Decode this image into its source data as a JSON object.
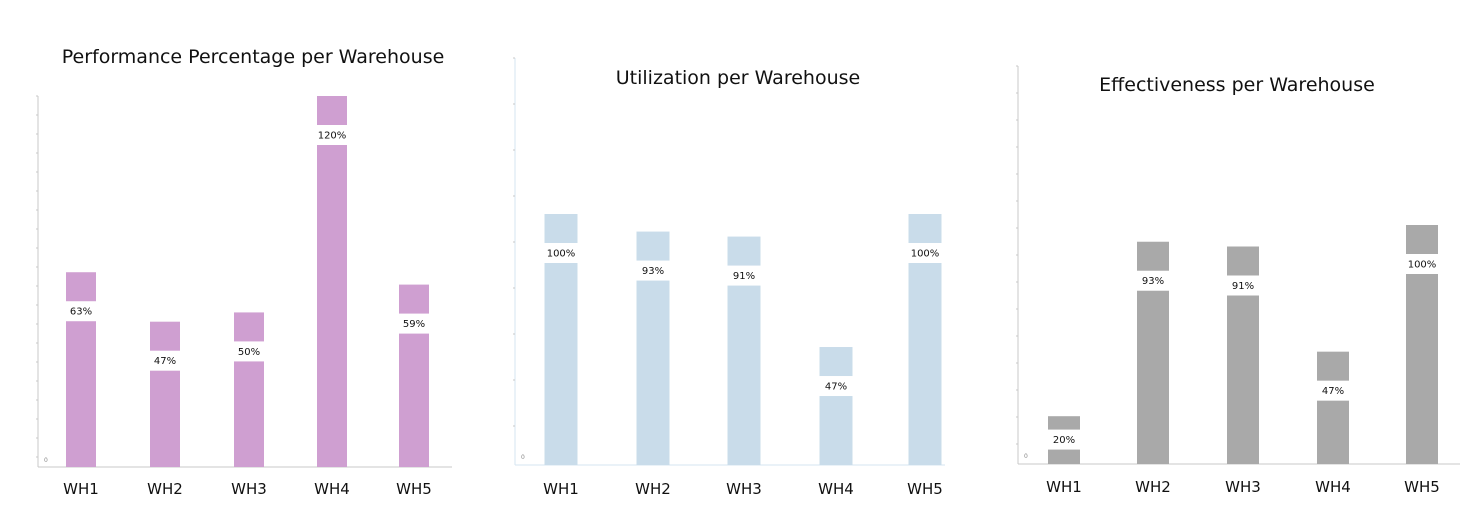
{
  "chart_data": [
    {
      "type": "bar",
      "title": "Performance Percentage per Warehouse",
      "categories": [
        "WH1",
        "WH2",
        "WH3",
        "WH4",
        "WH5"
      ],
      "values": [
        63,
        47,
        50,
        120,
        59
      ],
      "value_labels": [
        "63%",
        "47%",
        "50%",
        "120%",
        "59%"
      ],
      "y_min_label": "0",
      "color": "#cf9fd1"
    },
    {
      "type": "bar",
      "title": "Utilization per Warehouse",
      "categories": [
        "WH1",
        "WH2",
        "WH3",
        "WH4",
        "WH5"
      ],
      "values": [
        100,
        93,
        91,
        47,
        100
      ],
      "value_labels": [
        "100%",
        "93%",
        "91%",
        "47%",
        "100%"
      ],
      "y_min_label": "0",
      "color": "#c9dcea"
    },
    {
      "type": "bar",
      "title": "Effectiveness per Warehouse",
      "categories": [
        "WH1",
        "WH2",
        "WH3",
        "WH4",
        "WH5"
      ],
      "values": [
        20,
        93,
        91,
        47,
        100
      ],
      "value_labels": [
        "20%",
        "93%",
        "91%",
        "47%",
        "100%"
      ],
      "y_min_label": "0",
      "color": "#a9a9a9"
    }
  ]
}
